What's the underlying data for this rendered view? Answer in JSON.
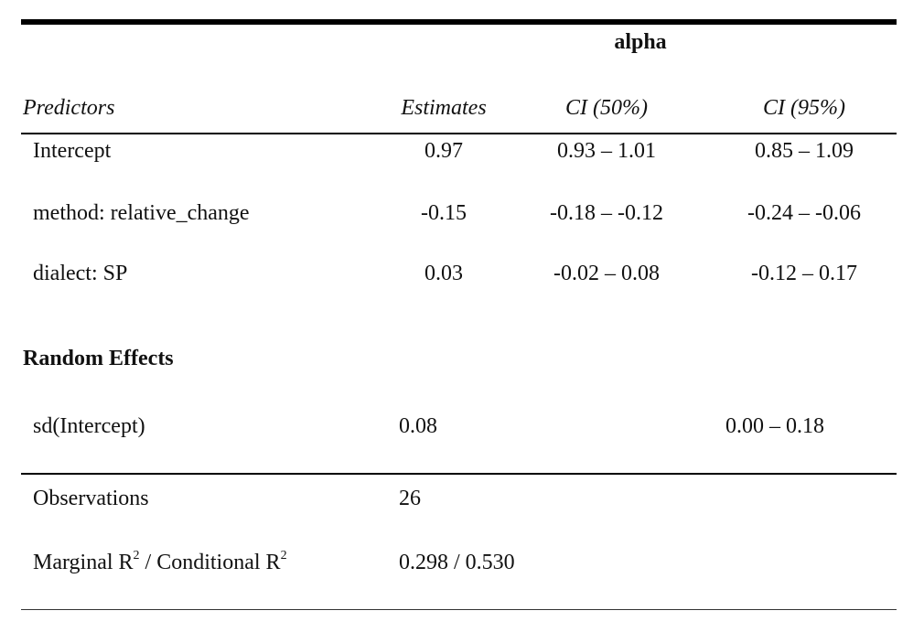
{
  "table": {
    "group_header": "alpha",
    "columns": {
      "predictors": "Predictors",
      "estimates": "Estimates",
      "ci50": "CI (50%)",
      "ci95": "CI (95%)"
    },
    "fixed_effects": [
      {
        "predictor": "Intercept",
        "estimate": "0.97",
        "ci50": "0.93 – 1.01",
        "ci95": "0.85 – 1.09"
      },
      {
        "predictor": "method: relative_change",
        "estimate": "-0.15",
        "ci50": "-0.18 – -0.12",
        "ci95": "-0.24 – -0.06"
      },
      {
        "predictor": "dialect: SP",
        "estimate": "0.03",
        "ci50": "-0.02 – 0.08",
        "ci95": "-0.12 – 0.17"
      }
    ],
    "random_effects": {
      "title": "Random Effects",
      "rows": [
        {
          "label": "sd(Intercept)",
          "value": "0.08",
          "ci95": "0.00 – 0.18"
        }
      ]
    },
    "model_stats": {
      "observations_label": "Observations",
      "observations_value": "26",
      "r2_label_marginal": "Marginal R",
      "r2_label_sep": " / Conditional R",
      "r2_superscript": "2",
      "r2_value": "0.298 / 0.530"
    }
  }
}
